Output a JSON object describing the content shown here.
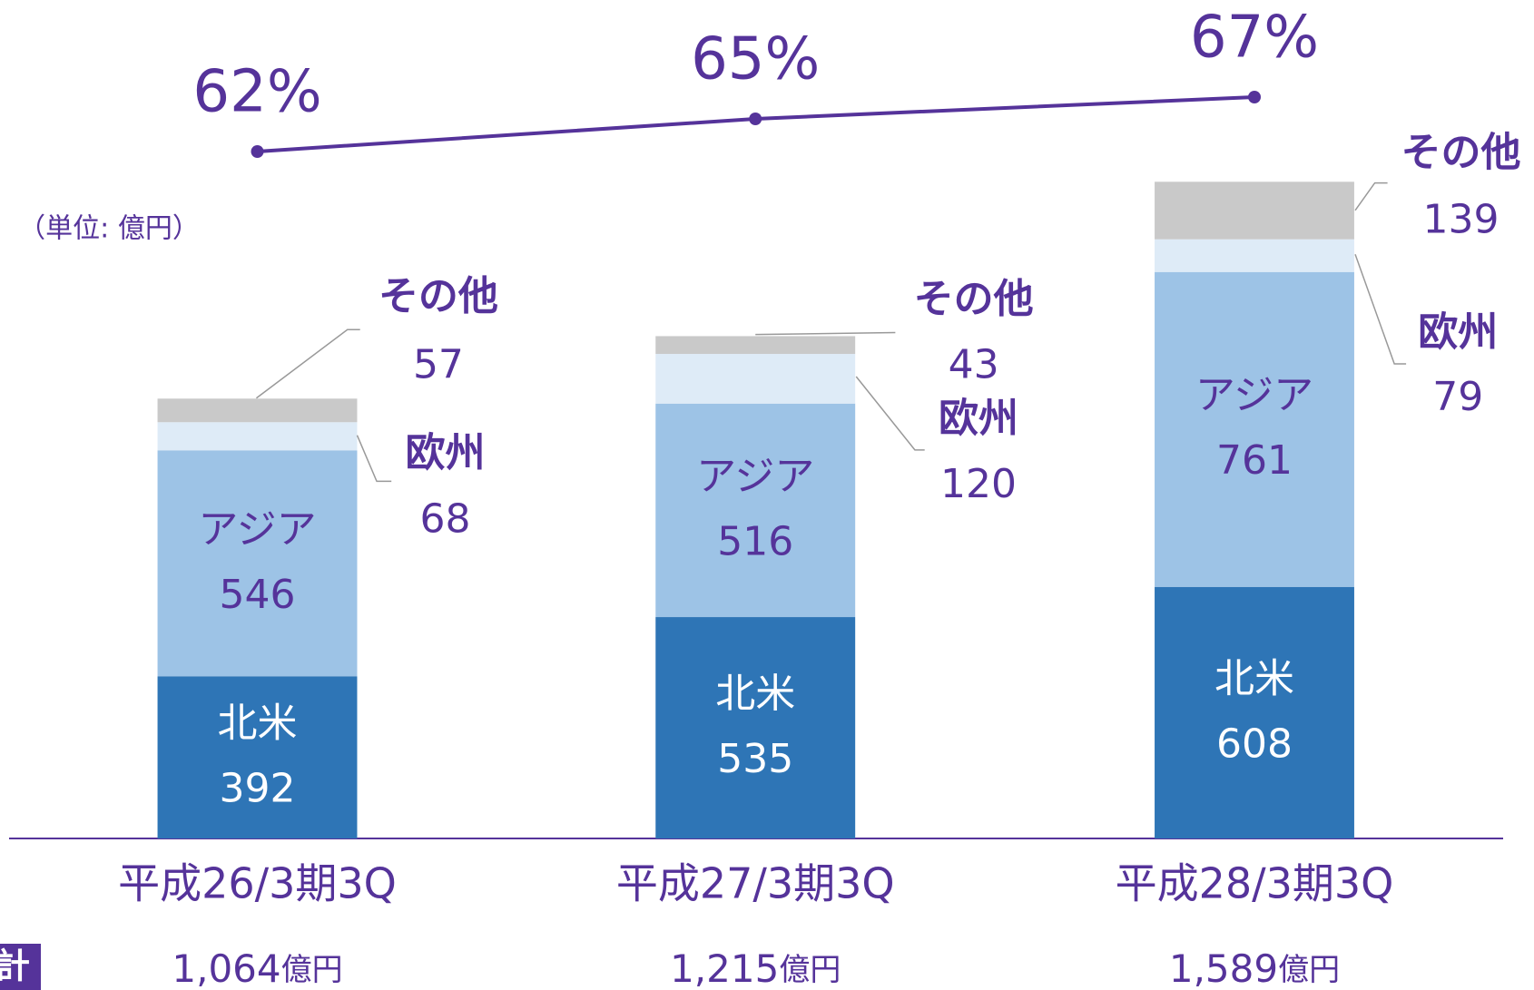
{
  "chart_data": {
    "type": "stacked_bar_line",
    "unit_label": "（単位: 億円）",
    "categories": [
      "平成26/3期3Q",
      "平成27/3期3Q",
      "平成28/3期3Q"
    ],
    "ylim": [
      0,
      2000
    ],
    "series": [
      {
        "name": "北米",
        "color": "#2e75b6",
        "values": [
          392,
          535,
          608
        ]
      },
      {
        "name": "アジア",
        "color": "#9dc3e6",
        "values": [
          546,
          516,
          761
        ]
      },
      {
        "name": "欧州",
        "color": "#deebf7",
        "values": [
          68,
          120,
          79
        ]
      },
      {
        "name": "その他",
        "color": "#c9c9c9",
        "values": [
          57,
          43,
          139
        ]
      }
    ],
    "line": {
      "color": "#55339a",
      "axis": "y2",
      "values": [
        62,
        65,
        67
      ],
      "value_labels": [
        "62%",
        "65%",
        "67%"
      ]
    },
    "y2lim": [
      50,
      75
    ],
    "total_label": "計",
    "totals": {
      "values": [
        1064,
        1215,
        1589
      ],
      "value_labels": [
        "1,064",
        "1,215",
        "1,589"
      ],
      "unit": "億円"
    }
  }
}
